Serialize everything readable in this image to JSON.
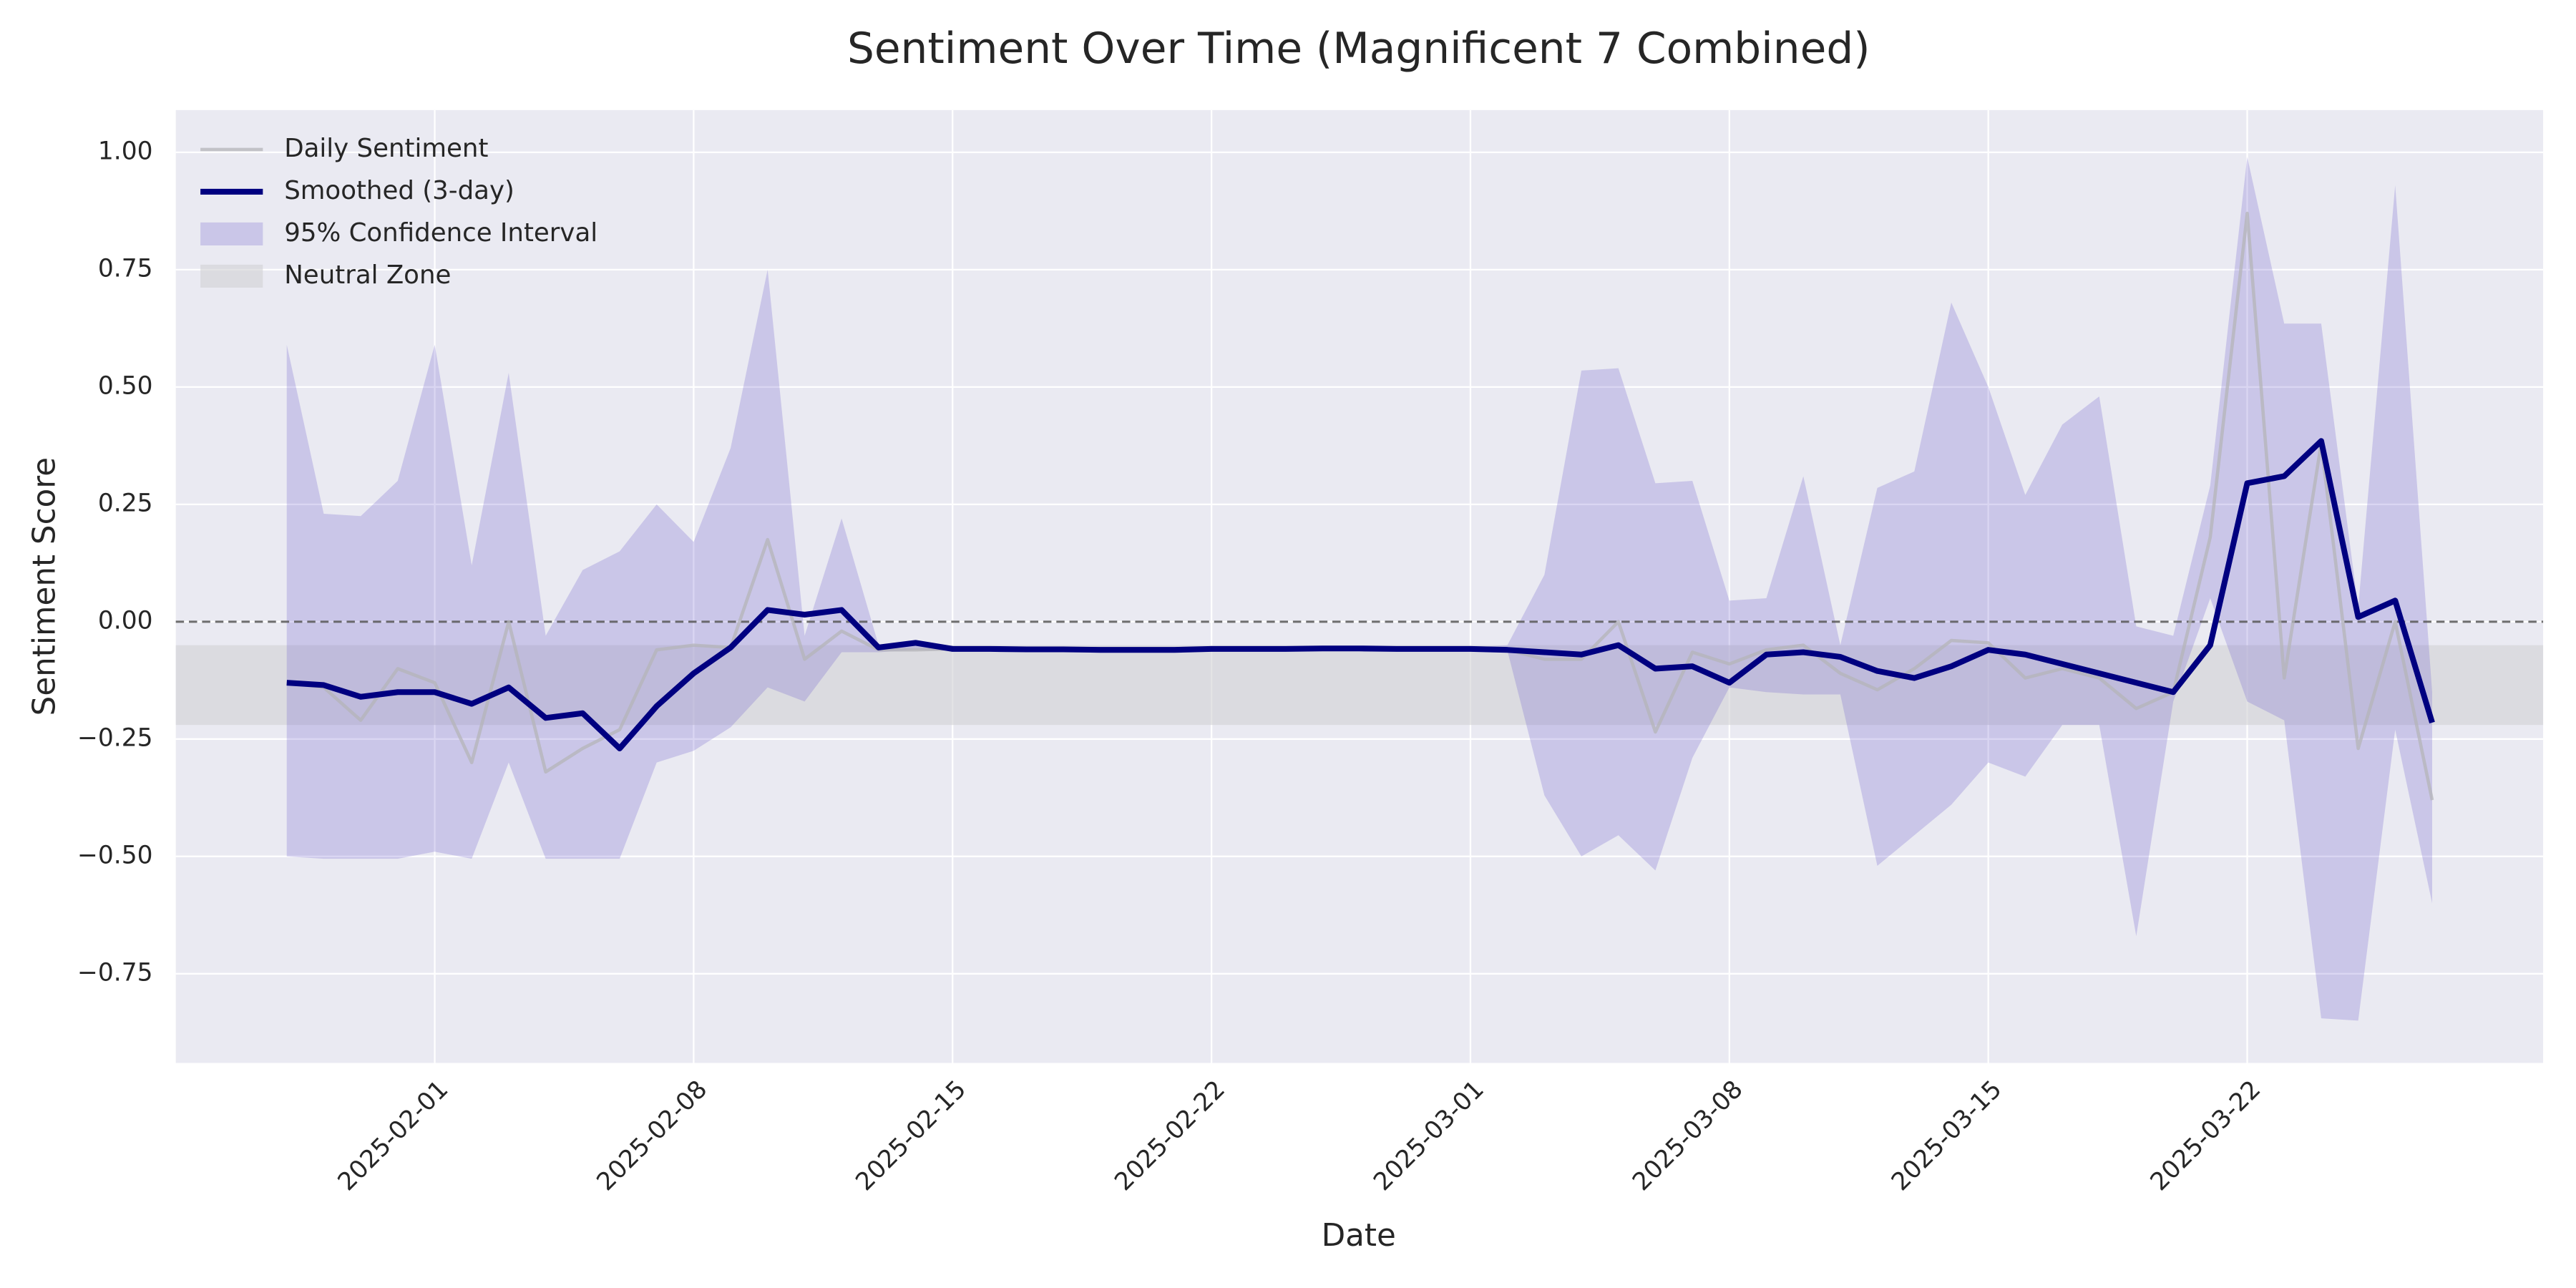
{
  "chart_data": {
    "type": "line",
    "title": "Sentiment Over Time (Magnificent 7 Combined)",
    "xlabel": "Date",
    "ylabel": "Sentiment Score",
    "x": [
      "2025-01-28",
      "2025-01-29",
      "2025-01-30",
      "2025-01-31",
      "2025-02-01",
      "2025-02-02",
      "2025-02-03",
      "2025-02-04",
      "2025-02-05",
      "2025-02-06",
      "2025-02-07",
      "2025-02-08",
      "2025-02-09",
      "2025-02-10",
      "2025-02-11",
      "2025-02-12",
      "2025-02-13",
      "2025-02-14",
      "2025-02-15",
      "2025-02-16",
      "2025-02-17",
      "2025-02-18",
      "2025-02-19",
      "2025-02-20",
      "2025-02-21",
      "2025-02-22",
      "2025-02-23",
      "2025-02-24",
      "2025-02-25",
      "2025-02-26",
      "2025-02-27",
      "2025-02-28",
      "2025-03-01",
      "2025-03-02",
      "2025-03-03",
      "2025-03-04",
      "2025-03-05",
      "2025-03-06",
      "2025-03-07",
      "2025-03-08",
      "2025-03-09",
      "2025-03-10",
      "2025-03-11",
      "2025-03-12",
      "2025-03-13",
      "2025-03-14",
      "2025-03-15",
      "2025-03-16",
      "2025-03-17",
      "2025-03-18",
      "2025-03-19",
      "2025-03-20",
      "2025-03-21",
      "2025-03-22",
      "2025-03-23",
      "2025-03-24",
      "2025-03-25",
      "2025-03-26",
      "2025-03-27"
    ],
    "xlim": [
      "2025-01-25",
      "2025-03-30"
    ],
    "xticks": [
      "2025-02-01",
      "2025-02-08",
      "2025-02-15",
      "2025-02-22",
      "2025-03-01",
      "2025-03-08",
      "2025-03-15",
      "2025-03-22"
    ],
    "ylim": [
      -0.94,
      1.09
    ],
    "yticks": [
      {
        "value": 1,
        "label": "1.00"
      },
      {
        "value": 0.75,
        "label": "0.75"
      },
      {
        "value": 0.5,
        "label": "0.50"
      },
      {
        "value": 0.25,
        "label": "0.25"
      },
      {
        "value": 0,
        "label": "0.00"
      },
      {
        "value": -0.25,
        "label": "−0.25"
      },
      {
        "value": -0.5,
        "label": "−0.50"
      },
      {
        "value": -0.75,
        "label": "−0.75"
      }
    ],
    "grid": true,
    "legend": "upper left",
    "hline": 0,
    "neutral_zone": {
      "name": "Neutral Zone",
      "color": "#d0d0d4",
      "range": [
        -0.22,
        -0.05
      ]
    },
    "confidence_interval": {
      "name": "95% Confidence Interval",
      "color": "#6a5acd",
      "upper": [
        0.59,
        0.23,
        0.225,
        0.3,
        0.59,
        0.12,
        0.53,
        -0.03,
        0.11,
        0.15,
        0.25,
        0.17,
        0.37,
        0.75,
        -0.03,
        0.22,
        -0.05,
        -0.05,
        -0.055,
        -0.055,
        -0.055,
        -0.055,
        -0.055,
        -0.055,
        -0.055,
        -0.055,
        -0.055,
        -0.055,
        -0.055,
        -0.055,
        -0.055,
        -0.055,
        -0.055,
        -0.05,
        0.1,
        0.535,
        0.54,
        0.295,
        0.3,
        0.045,
        0.05,
        0.31,
        -0.05,
        0.285,
        0.32,
        0.68,
        0.5,
        0.27,
        0.42,
        0.48,
        -0.01,
        -0.03,
        0.29,
        0.99,
        0.635,
        0.635,
        0.03,
        0.93,
        -0.15
      ],
      "lower": [
        -0.5,
        -0.505,
        -0.505,
        -0.505,
        -0.49,
        -0.505,
        -0.3,
        -0.505,
        -0.505,
        -0.505,
        -0.3,
        -0.275,
        -0.225,
        -0.14,
        -0.17,
        -0.065,
        -0.065,
        -0.06,
        -0.062,
        -0.062,
        -0.062,
        -0.062,
        -0.062,
        -0.062,
        -0.062,
        -0.062,
        -0.062,
        -0.062,
        -0.062,
        -0.062,
        -0.062,
        -0.062,
        -0.062,
        -0.062,
        -0.37,
        -0.5,
        -0.455,
        -0.53,
        -0.29,
        -0.14,
        -0.15,
        -0.155,
        -0.155,
        -0.52,
        -0.455,
        -0.39,
        -0.3,
        -0.33,
        -0.22,
        -0.22,
        -0.67,
        -0.17,
        0.05,
        -0.17,
        -0.21,
        -0.845,
        -0.85,
        -0.23,
        -0.6
      ]
    },
    "series": [
      {
        "name": "Daily Sentiment",
        "color": "#b4b4b8",
        "values": [
          -0.13,
          -0.14,
          -0.21,
          -0.1,
          -0.13,
          -0.3,
          0.0,
          -0.32,
          -0.27,
          -0.23,
          -0.06,
          -0.05,
          -0.055,
          0.175,
          -0.08,
          -0.02,
          -0.06,
          -0.06,
          -0.058,
          -0.058,
          -0.059,
          -0.06,
          -0.06,
          -0.06,
          -0.058,
          -0.057,
          -0.058,
          -0.058,
          -0.057,
          -0.056,
          -0.058,
          -0.058,
          -0.058,
          -0.06,
          -0.08,
          -0.08,
          0.0,
          -0.235,
          -0.065,
          -0.09,
          -0.06,
          -0.05,
          -0.11,
          -0.145,
          -0.1,
          -0.04,
          -0.045,
          -0.12,
          -0.1,
          -0.12,
          -0.185,
          -0.15,
          0.18,
          0.87,
          -0.12,
          0.38,
          -0.27,
          0.0,
          -0.38
        ]
      },
      {
        "name": "Smoothed (3-day)",
        "color": "#000080",
        "values": [
          -0.13,
          -0.135,
          -0.16,
          -0.15,
          -0.15,
          -0.175,
          -0.14,
          -0.205,
          -0.195,
          -0.27,
          -0.18,
          -0.11,
          -0.055,
          0.025,
          0.015,
          0.025,
          -0.055,
          -0.045,
          -0.058,
          -0.058,
          -0.059,
          -0.059,
          -0.06,
          -0.06,
          -0.06,
          -0.058,
          -0.058,
          -0.058,
          -0.057,
          -0.057,
          -0.058,
          -0.058,
          -0.058,
          -0.06,
          -0.065,
          -0.07,
          -0.05,
          -0.1,
          -0.095,
          -0.13,
          -0.07,
          -0.065,
          -0.075,
          -0.105,
          -0.12,
          -0.095,
          -0.06,
          -0.07,
          -0.09,
          -0.11,
          -0.13,
          -0.15,
          -0.05,
          0.295,
          0.31,
          0.385,
          0.01,
          0.045,
          -0.215
        ]
      }
    ]
  }
}
